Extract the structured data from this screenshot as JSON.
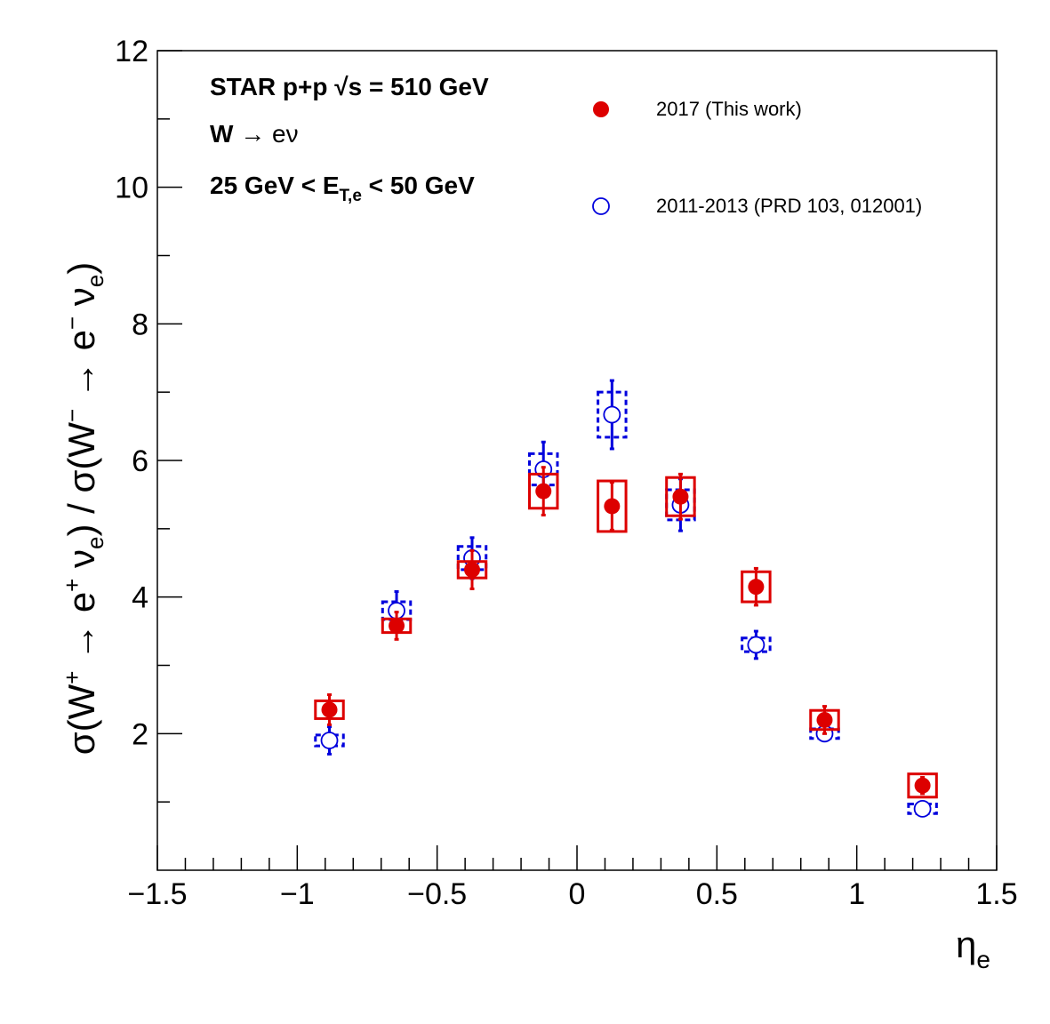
{
  "chart_data": {
    "type": "scatter",
    "xlabel": "η",
    "xlabel_sub": "e",
    "ylabel_parts": {
      "p1": "σ(W",
      "sup1": "+",
      "p2": " → e",
      "sup2": "+",
      "p3": " ν",
      "sub3": "e",
      "p4": ") / σ(W",
      "sup4": "−",
      "p5": " → e",
      "sup5": "−",
      "p6": " ν",
      "sub6": "e",
      "p7": ")"
    },
    "xlim": [
      -1.5,
      1.5
    ],
    "ylim": [
      0,
      12
    ],
    "x_ticks": [
      -1.5,
      -1,
      -0.5,
      0,
      0.5,
      1,
      1.5
    ],
    "x_tick_labels": [
      "−1.5",
      "−1",
      "−0.5",
      "0",
      "0.5",
      "1",
      "1.5"
    ],
    "y_ticks": [
      2,
      4,
      6,
      8,
      10,
      12
    ],
    "y_tick_labels": [
      "2",
      "4",
      "6",
      "8",
      "10",
      "12"
    ],
    "annotations": {
      "line1_a": "STAR p+p  ",
      "line1_b": "√s",
      "line1_c": " = 510 GeV",
      "line2_a": "W  ",
      "line2_b": "→ eν",
      "line3_a": "25 GeV < E",
      "line3_sub": "T,e",
      "line3_b": " < 50 GeV"
    },
    "series": [
      {
        "name": "2017 (This work)",
        "marker": "filled-circle",
        "color": "#dd0000",
        "box_style": "solid",
        "points": [
          {
            "x": -0.885,
            "y": 2.35,
            "stat": 0.22,
            "sys": 0.13,
            "hw": 0.05
          },
          {
            "x": -0.645,
            "y": 3.58,
            "stat": 0.2,
            "sys": 0.1,
            "hw": 0.05
          },
          {
            "x": -0.375,
            "y": 4.4,
            "stat": 0.28,
            "sys": 0.12,
            "hw": 0.05
          },
          {
            "x": -0.12,
            "y": 5.55,
            "stat": 0.35,
            "sys": 0.25,
            "hw": 0.05
          },
          {
            "x": 0.125,
            "y": 5.33,
            "stat": 0.35,
            "sys": 0.37,
            "hw": 0.05
          },
          {
            "x": 0.37,
            "y": 5.47,
            "stat": 0.33,
            "sys": 0.28,
            "hw": 0.05
          },
          {
            "x": 0.64,
            "y": 4.15,
            "stat": 0.27,
            "sys": 0.22,
            "hw": 0.05
          },
          {
            "x": 0.885,
            "y": 2.2,
            "stat": 0.2,
            "sys": 0.14,
            "hw": 0.05
          },
          {
            "x": 1.235,
            "y": 1.24,
            "stat": 0.12,
            "sys": 0.17,
            "hw": 0.05
          }
        ]
      },
      {
        "name": "2011-2013 (PRD 103, 012001)",
        "marker": "open-circle",
        "color": "#0000dd",
        "box_style": "dashed",
        "points": [
          {
            "x": -0.885,
            "y": 1.9,
            "stat": 0.2,
            "sys": 0.08,
            "hw": 0.05
          },
          {
            "x": -0.645,
            "y": 3.8,
            "stat": 0.28,
            "sys": 0.13,
            "hw": 0.05
          },
          {
            "x": -0.375,
            "y": 4.57,
            "stat": 0.3,
            "sys": 0.17,
            "hw": 0.05
          },
          {
            "x": -0.12,
            "y": 5.87,
            "stat": 0.4,
            "sys": 0.23,
            "hw": 0.05
          },
          {
            "x": 0.125,
            "y": 6.67,
            "stat": 0.5,
            "sys": 0.33,
            "hw": 0.05
          },
          {
            "x": 0.37,
            "y": 5.35,
            "stat": 0.38,
            "sys": 0.22,
            "hw": 0.05
          },
          {
            "x": 0.64,
            "y": 3.3,
            "stat": 0.2,
            "sys": 0.1,
            "hw": 0.05
          },
          {
            "x": 0.885,
            "y": 2.0,
            "stat": 0.1,
            "sys": 0.07,
            "hw": 0.05
          },
          {
            "x": 1.235,
            "y": 0.9,
            "stat": 0.07,
            "sys": 0.07,
            "hw": 0.05
          }
        ]
      }
    ],
    "legend": {
      "entries": [
        "2017 (This work)",
        "2011-2013 (PRD 103, 012001)"
      ],
      "placement": "top-right"
    },
    "grid": false
  }
}
